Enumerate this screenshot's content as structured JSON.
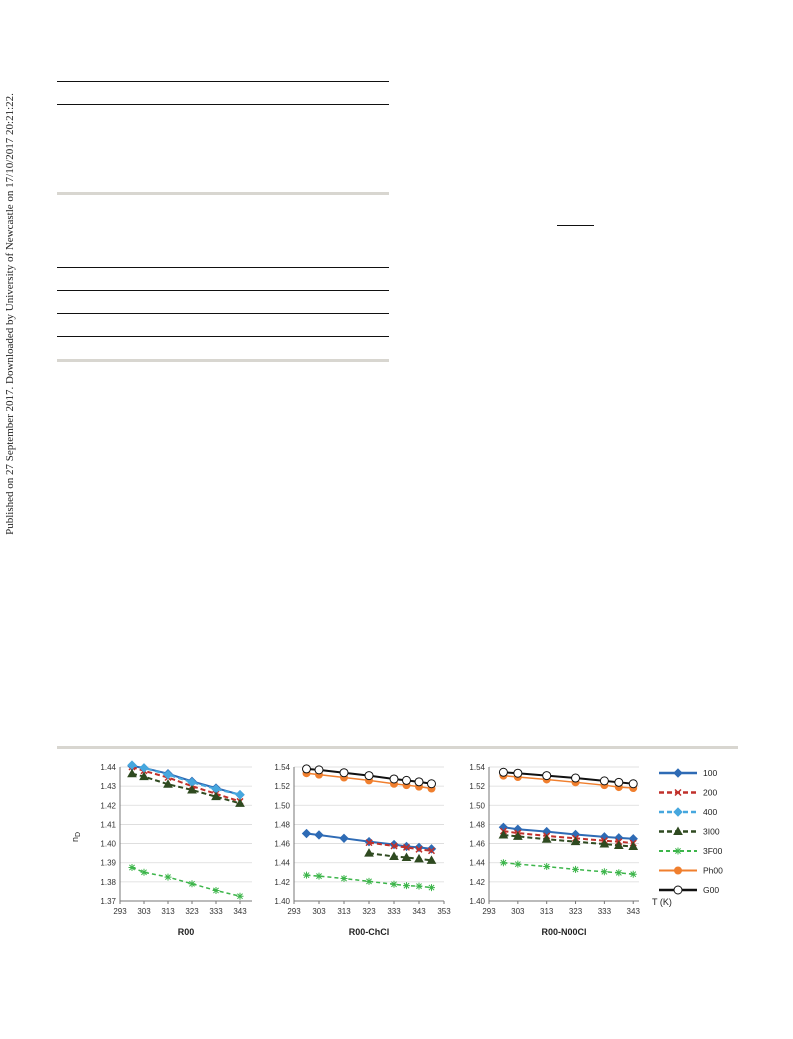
{
  "margin_note": "Published on 27 September 2017. Downloaded by University of Newcastle on 17/10/2017 20:21:22.",
  "figure": {
    "legend": [
      "100",
      "200",
      "400",
      "3I00",
      "3F00",
      "Ph00",
      "G00"
    ],
    "x_axis_label": "T (K)",
    "y_axis_label": "n",
    "y_axis_label_sub": "D"
  },
  "chart_data": [
    {
      "type": "line",
      "title": "R00",
      "xlim": [
        293,
        348
      ],
      "ylim": [
        1.37,
        1.44
      ],
      "xticks": [
        293,
        303,
        313,
        323,
        333,
        343
      ],
      "yticks": [
        1.37,
        1.38,
        1.39,
        1.4,
        1.41,
        1.42,
        1.43,
        1.44
      ],
      "tick_decimals": 2,
      "series": [
        {
          "name": "100",
          "color": "#2e6bb5",
          "x": [
            298,
            303,
            313,
            323,
            333,
            343
          ],
          "y": [
            1.4405,
            1.4395,
            1.4365,
            1.4325,
            1.429,
            1.4255
          ]
        },
        {
          "name": "200",
          "color": "#c0302b",
          "x": [
            298,
            303,
            313,
            323,
            333,
            343
          ],
          "y": [
            1.44,
            1.438,
            1.4345,
            1.43,
            1.426,
            1.422
          ]
        },
        {
          "name": "400",
          "color": "#46a7de",
          "x": [
            298,
            303,
            313,
            323,
            333,
            343
          ],
          "y": [
            1.441,
            1.4395,
            1.436,
            1.432,
            1.4285,
            1.4255
          ]
        },
        {
          "name": "3I00",
          "color": "#2f4a20",
          "x": [
            298,
            303,
            313,
            323,
            333,
            343
          ],
          "y": [
            1.4365,
            1.435,
            1.431,
            1.428,
            1.4245,
            1.421
          ]
        },
        {
          "name": "3F00",
          "color": "#3cb54a",
          "x": [
            298,
            303,
            313,
            323,
            333,
            343
          ],
          "y": [
            1.3875,
            1.385,
            1.3825,
            1.379,
            1.3755,
            1.3725
          ]
        }
      ]
    },
    {
      "type": "line",
      "title": "R00-ChCl",
      "xlim": [
        293,
        353
      ],
      "ylim": [
        1.4,
        1.54
      ],
      "xticks": [
        293,
        303,
        313,
        323,
        333,
        343,
        353
      ],
      "yticks": [
        1.4,
        1.42,
        1.44,
        1.46,
        1.48,
        1.5,
        1.52,
        1.54
      ],
      "tick_decimals": 2,
      "series": [
        {
          "name": "100",
          "color": "#2e6bb5",
          "x": [
            298,
            303,
            313,
            323,
            333,
            338,
            343,
            348
          ],
          "y": [
            1.4705,
            1.469,
            1.4655,
            1.462,
            1.459,
            1.457,
            1.456,
            1.4545
          ]
        },
        {
          "name": "200",
          "color": "#c0302b",
          "x": [
            323,
            333,
            338,
            343,
            348
          ],
          "y": [
            1.461,
            1.4575,
            1.456,
            1.454,
            1.4525
          ]
        },
        {
          "name": "3I00",
          "color": "#2f4a20",
          "x": [
            323,
            333,
            338,
            343,
            348
          ],
          "y": [
            1.45,
            1.4465,
            1.4455,
            1.444,
            1.4425
          ]
        },
        {
          "name": "3F00",
          "color": "#3cb54a",
          "x": [
            298,
            303,
            313,
            323,
            333,
            338,
            343,
            348
          ],
          "y": [
            1.427,
            1.426,
            1.4235,
            1.4205,
            1.4175,
            1.416,
            1.4155,
            1.414
          ]
        },
        {
          "name": "Ph00",
          "color": "#f07f2e",
          "x": [
            298,
            303,
            313,
            323,
            333,
            338,
            343,
            348
          ],
          "y": [
            1.5335,
            1.532,
            1.529,
            1.526,
            1.5225,
            1.521,
            1.5195,
            1.5175
          ]
        },
        {
          "name": "G00",
          "color": "#111111",
          "x": [
            298,
            303,
            313,
            323,
            333,
            338,
            343,
            348
          ],
          "y": [
            1.538,
            1.537,
            1.534,
            1.531,
            1.5275,
            1.526,
            1.5245,
            1.5225
          ]
        }
      ]
    },
    {
      "type": "line",
      "title": "R00-N00Cl",
      "xlim": [
        293,
        345
      ],
      "ylim": [
        1.4,
        1.54
      ],
      "xticks": [
        293,
        303,
        313,
        323,
        333,
        343
      ],
      "yticks": [
        1.4,
        1.42,
        1.44,
        1.46,
        1.48,
        1.5,
        1.52,
        1.54
      ],
      "tick_decimals": 2,
      "series": [
        {
          "name": "100",
          "color": "#2e6bb5",
          "x": [
            298,
            303,
            313,
            323,
            333,
            338,
            343
          ],
          "y": [
            1.477,
            1.475,
            1.4725,
            1.4695,
            1.467,
            1.466,
            1.465
          ]
        },
        {
          "name": "200",
          "color": "#c0302b",
          "x": [
            298,
            303,
            313,
            323,
            333,
            338,
            343
          ],
          "y": [
            1.473,
            1.471,
            1.468,
            1.4655,
            1.463,
            1.462,
            1.4605
          ]
        },
        {
          "name": "3I00",
          "color": "#2f4a20",
          "x": [
            298,
            303,
            313,
            323,
            333,
            338,
            343
          ],
          "y": [
            1.469,
            1.4675,
            1.4645,
            1.462,
            1.4595,
            1.458,
            1.457
          ]
        },
        {
          "name": "3F00",
          "color": "#3cb54a",
          "x": [
            298,
            303,
            313,
            323,
            333,
            338,
            343
          ],
          "y": [
            1.44,
            1.4385,
            1.436,
            1.433,
            1.4305,
            1.4295,
            1.428
          ]
        },
        {
          "name": "Ph00",
          "color": "#f07f2e",
          "x": [
            298,
            303,
            313,
            323,
            333,
            338,
            343
          ],
          "y": [
            1.531,
            1.5295,
            1.527,
            1.524,
            1.521,
            1.519,
            1.518
          ]
        },
        {
          "name": "G00",
          "color": "#111111",
          "x": [
            298,
            303,
            313,
            323,
            333,
            338,
            343
          ],
          "y": [
            1.5345,
            1.5335,
            1.531,
            1.5285,
            1.5255,
            1.524,
            1.5225
          ]
        }
      ]
    }
  ]
}
